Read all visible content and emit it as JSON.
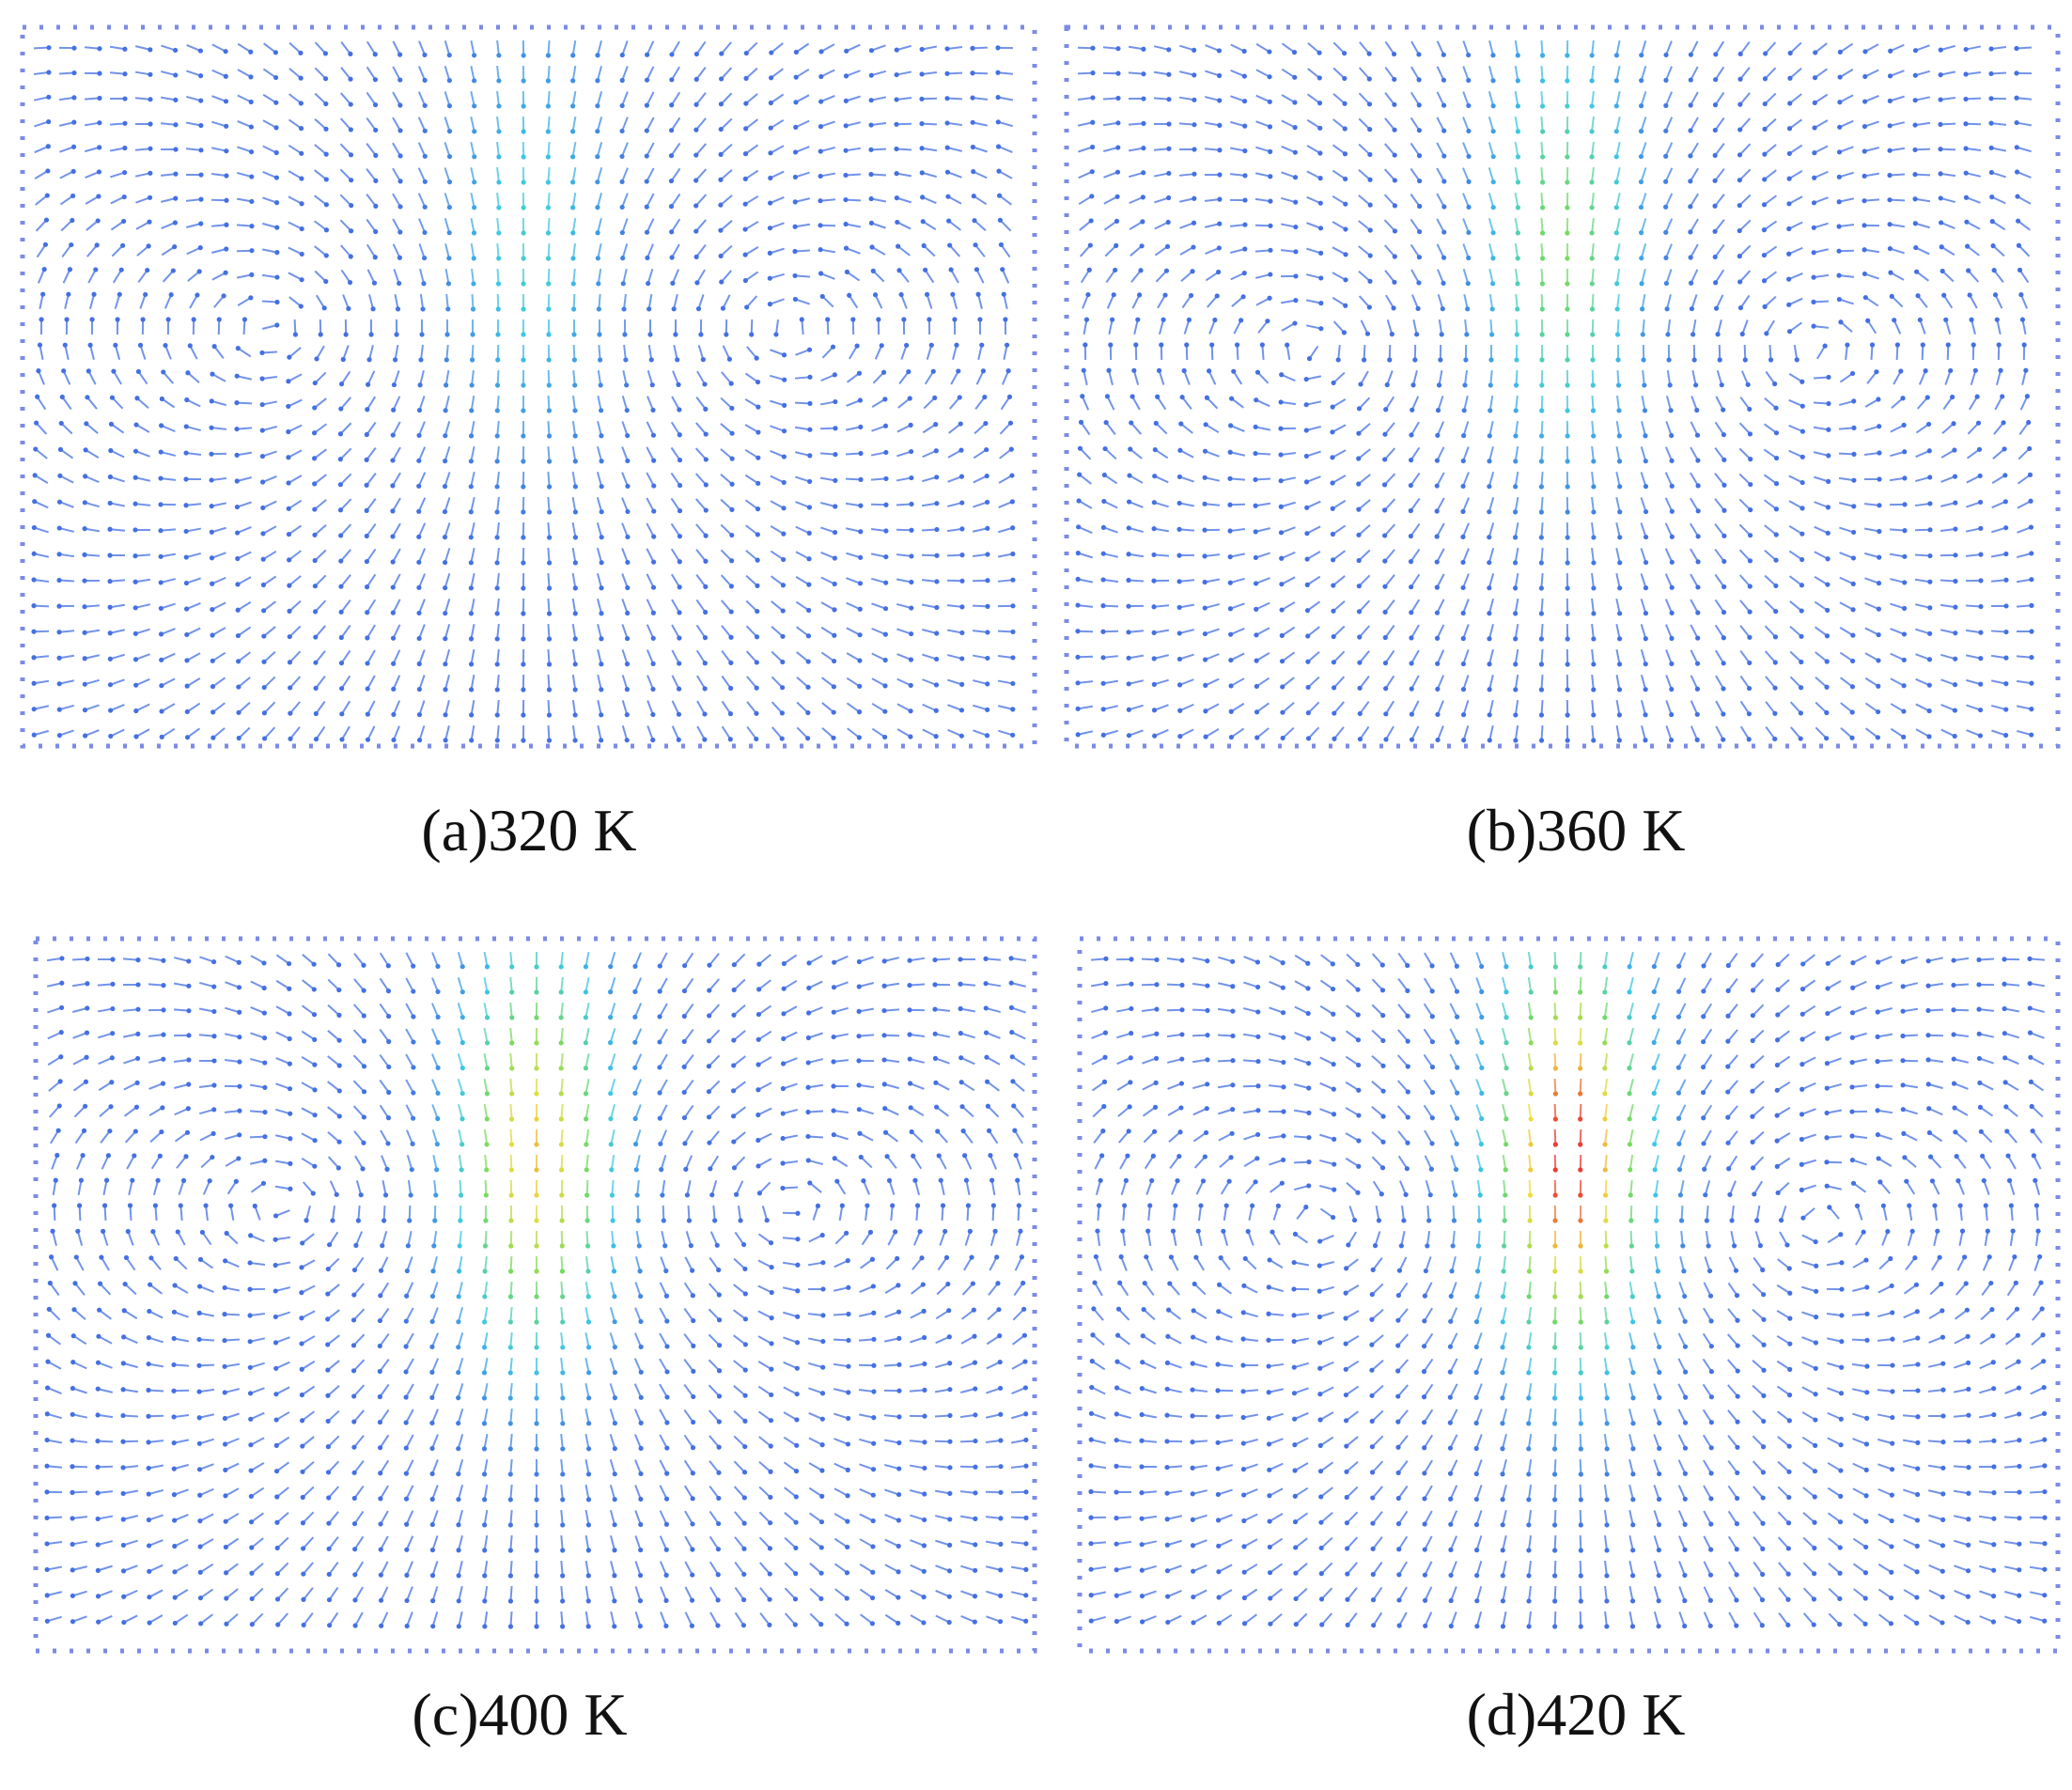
{
  "figure": {
    "panels": [
      {
        "caption": "(a)320 K"
      },
      {
        "caption": "(b)360 K"
      },
      {
        "caption": "(c)400 K"
      },
      {
        "caption": "(d)420 K"
      }
    ]
  }
}
